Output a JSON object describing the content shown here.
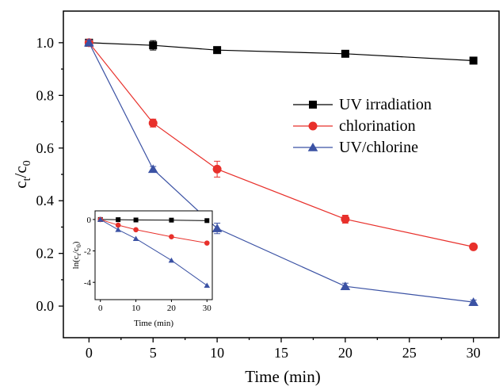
{
  "chart_data": [
    {
      "type": "line",
      "xlabel": "Time (min)",
      "ylabel": "ct/c0",
      "ylabel_parts": {
        "c1": "c",
        "sub1": "t",
        "slash": "/",
        "c2": "c",
        "sub2": "0"
      },
      "x": [
        0,
        5,
        10,
        20,
        30
      ],
      "xlim": [
        -2,
        32
      ],
      "ylim": [
        -0.12,
        1.12
      ],
      "xticks": [
        "0",
        "5",
        "10",
        "15",
        "20",
        "25",
        "30"
      ],
      "xtick_values": [
        0,
        5,
        10,
        15,
        20,
        25,
        30
      ],
      "yticks": [
        "0.0",
        "0.2",
        "0.4",
        "0.6",
        "0.8",
        "1.0"
      ],
      "ytick_values": [
        0,
        0.2,
        0.4,
        0.6,
        0.8,
        1.0
      ],
      "legend_position": "upper-right",
      "series": [
        {
          "name": "UV irradiation",
          "color": "#000000",
          "marker": "square",
          "values": [
            1.0,
            0.99,
            0.972,
            0.958,
            0.932
          ],
          "errors": [
            0.01,
            0.018,
            0.008,
            0.008,
            0.008
          ]
        },
        {
          "name": "chlorination",
          "color": "#e8302b",
          "marker": "circle",
          "values": [
            1.0,
            0.695,
            0.52,
            0.33,
            0.225
          ],
          "errors": [
            0.01,
            0.015,
            0.03,
            0.015,
            0.01
          ]
        },
        {
          "name": "UV/chlorine",
          "color": "#3b52a4",
          "marker": "triangle",
          "values": [
            1.0,
            0.52,
            0.295,
            0.075,
            0.015
          ],
          "errors": [
            0.01,
            0.01,
            0.02,
            0.012,
            0.008
          ]
        }
      ]
    },
    {
      "type": "line",
      "inset": true,
      "xlabel": "Time (min)",
      "ylabel": "ln(ct/c0)",
      "ylabel_parts": {
        "pre": "ln(c",
        "sub1": "t",
        "mid": "/c",
        "sub2": "0",
        "post": ")"
      },
      "x": [
        0,
        5,
        10,
        20,
        30
      ],
      "xlim": [
        -1.5,
        31.5
      ],
      "ylim": [
        -5.1,
        0.55
      ],
      "xticks": [
        "0",
        "10",
        "20",
        "30"
      ],
      "xtick_values": [
        0,
        10,
        20,
        30
      ],
      "yticks": [
        "0",
        "-2",
        "-4"
      ],
      "ytick_values": [
        0,
        -2,
        -4
      ],
      "series": [
        {
          "name": "UV irradiation",
          "color": "#000000",
          "marker": "square",
          "values": [
            0.0,
            -0.01,
            -0.03,
            -0.04,
            -0.07
          ]
        },
        {
          "name": "chlorination",
          "color": "#e8302b",
          "marker": "circle",
          "values": [
            0.0,
            -0.36,
            -0.65,
            -1.1,
            -1.5
          ]
        },
        {
          "name": "UV/chlorine",
          "color": "#3b52a4",
          "marker": "triangle",
          "values": [
            0.0,
            -0.65,
            -1.22,
            -2.6,
            -4.2
          ]
        }
      ]
    }
  ]
}
